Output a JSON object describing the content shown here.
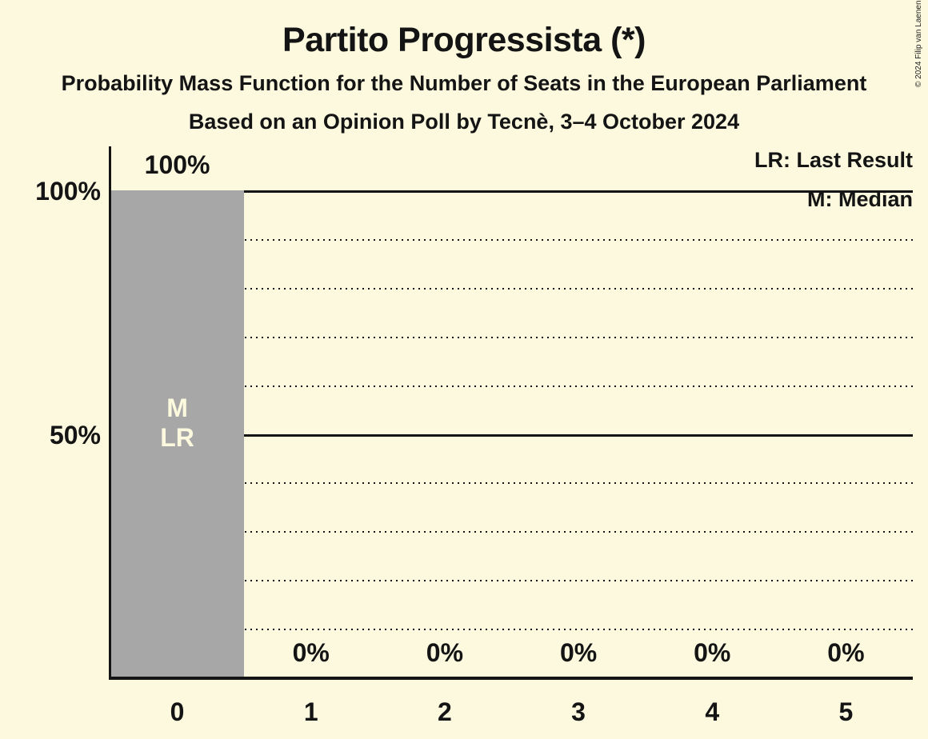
{
  "title": "Partito Progressista (*)",
  "subtitle": "Probability Mass Function for the Number of Seats in the European Parliament",
  "subsubtitle": "Based on an Opinion Poll by Tecnè, 3–4 October 2024",
  "copyright": "© 2024 Filip van Laenen",
  "legend": {
    "last_result": "LR: Last Result",
    "median": "M: Median"
  },
  "colors": {
    "background": "#FCF9DE",
    "bar": "#A7A7A7",
    "text": "#141414",
    "bar_label_text": "#FCF9DE"
  },
  "chart_data": {
    "type": "bar",
    "title": "Partito Progressista (*)",
    "xlabel": "",
    "ylabel": "",
    "categories": [
      "0",
      "1",
      "2",
      "3",
      "4",
      "5"
    ],
    "values": [
      100,
      0,
      0,
      0,
      0,
      0
    ],
    "value_labels": [
      "100%",
      "0%",
      "0%",
      "0%",
      "0%",
      "0%"
    ],
    "ylim": [
      0,
      100
    ],
    "y_axis_labels": [
      {
        "text": "100%",
        "value": 100
      },
      {
        "text": "50%",
        "value": 50
      }
    ],
    "solid_gridlines": [
      100,
      50
    ],
    "dotted_gridlines": [
      90,
      80,
      70,
      60,
      40,
      30,
      20,
      10
    ],
    "annotations": [
      {
        "category": "0",
        "lines": [
          "M",
          "LR"
        ]
      }
    ],
    "legend_position": "top-right",
    "grid": "horizontal-dotted-every-10pct"
  }
}
